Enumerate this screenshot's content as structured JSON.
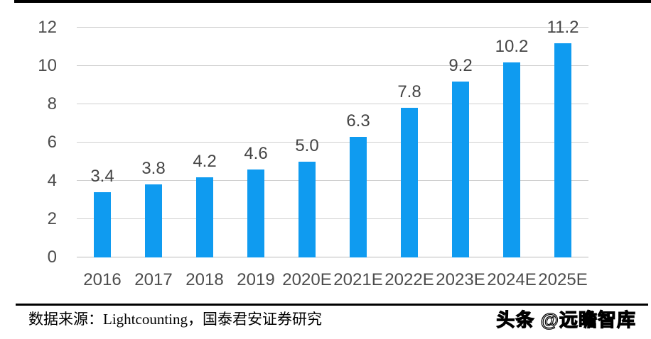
{
  "chart_data": {
    "type": "bar",
    "categories": [
      "2016",
      "2017",
      "2018",
      "2019",
      "2020E",
      "2021E",
      "2022E",
      "2023E",
      "2024E",
      "2025E"
    ],
    "values": [
      3.4,
      3.8,
      4.2,
      4.6,
      5.0,
      6.3,
      7.8,
      9.2,
      10.2,
      11.2
    ],
    "value_labels": [
      "3.4",
      "3.8",
      "4.2",
      "4.6",
      "5.0",
      "6.3",
      "7.8",
      "9.2",
      "10.2",
      "11.2"
    ],
    "title": "",
    "xlabel": "",
    "ylabel": "",
    "ylim": [
      0,
      12
    ],
    "yticks": [
      0,
      2,
      4,
      6,
      8,
      10,
      12
    ],
    "grid": true,
    "legend": false,
    "bar_color": "#0f9bf0"
  },
  "colors": {
    "bar": "#0f9bf0",
    "gridline": "#d0d0d0",
    "axis_line": "#b9b9b9",
    "tick_text": "#4d4d4d",
    "label_text": "#454545",
    "rule": "#000000"
  },
  "footer": {
    "source_text": "数据来源：Lightcounting，国泰君安证券研究",
    "watermark": "头条 @远瞻智库"
  }
}
